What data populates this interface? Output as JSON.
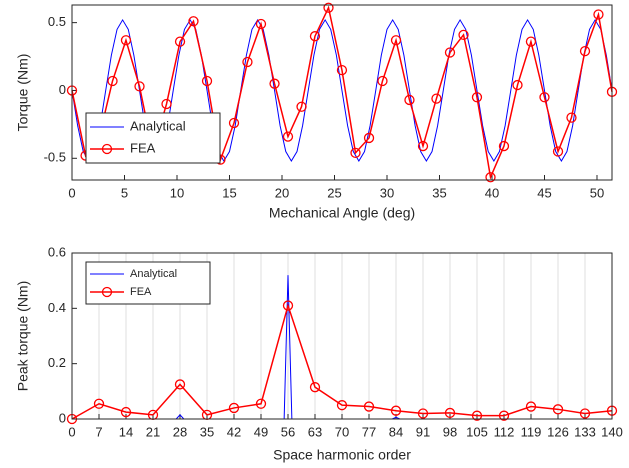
{
  "chart_data": [
    {
      "type": "line",
      "xlabel": "Mechanical Angle (deg)",
      "ylabel": "Torque (Nm)",
      "xlim": [
        0,
        51.43
      ],
      "ylim": [
        -0.66,
        0.63
      ],
      "xticks": [
        0,
        5,
        10,
        15,
        20,
        25,
        30,
        35,
        40,
        45,
        50
      ],
      "yticks": [
        -0.5,
        0,
        0.5
      ],
      "grid": false,
      "legend": "lower left",
      "series": [
        {
          "name": "Analytical",
          "color": "#0000ff",
          "marker": "none",
          "x": [
            0,
            0.54,
            1.07,
            1.61,
            2.14,
            2.68,
            3.21,
            3.75,
            4.29,
            4.82,
            5.36,
            5.89,
            6.43,
            6.96,
            7.5,
            8.04,
            8.57,
            9.11,
            9.64,
            10.18,
            10.71,
            11.25,
            11.79,
            12.32,
            12.86,
            13.39,
            13.93,
            14.46,
            15,
            15.54,
            16.07,
            16.61,
            17.14,
            17.68,
            18.21,
            18.75,
            19.29,
            19.82,
            20.36,
            20.89,
            21.43,
            21.96,
            22.5,
            23.04,
            23.57,
            24.11,
            24.64,
            25.18,
            25.71,
            26.25,
            26.79,
            27.32,
            27.86,
            28.39,
            28.93,
            29.46,
            30,
            30.54,
            31.07,
            31.61,
            32.14,
            32.68,
            33.21,
            33.75,
            34.29,
            34.82,
            35.36,
            35.89,
            36.43,
            36.96,
            37.5,
            38.04,
            38.57,
            39.11,
            39.64,
            40.18,
            40.71,
            41.25,
            41.79,
            42.32,
            42.86,
            43.39,
            43.93,
            44.46,
            45,
            45.54,
            46.07,
            46.61,
            47.14,
            47.68,
            48.21,
            48.75,
            49.29,
            49.82,
            50.36,
            50.89,
            51.43
          ],
          "values": [
            0,
            -0.26,
            -0.45,
            -0.52,
            -0.45,
            -0.26,
            0,
            0.26,
            0.45,
            0.52,
            0.45,
            0.26,
            0,
            -0.26,
            -0.45,
            -0.52,
            -0.45,
            -0.26,
            0,
            0.26,
            0.45,
            0.52,
            0.45,
            0.26,
            0,
            -0.26,
            -0.45,
            -0.52,
            -0.45,
            -0.26,
            0,
            0.26,
            0.45,
            0.52,
            0.45,
            0.26,
            0,
            -0.26,
            -0.45,
            -0.52,
            -0.45,
            -0.26,
            0,
            0.26,
            0.45,
            0.52,
            0.45,
            0.26,
            0,
            -0.26,
            -0.45,
            -0.52,
            -0.45,
            -0.26,
            0,
            0.26,
            0.45,
            0.52,
            0.45,
            0.26,
            0,
            -0.26,
            -0.45,
            -0.52,
            -0.45,
            -0.26,
            0,
            0.26,
            0.45,
            0.52,
            0.45,
            0.26,
            0,
            -0.26,
            -0.45,
            -0.52,
            -0.45,
            -0.26,
            0,
            0.26,
            0.45,
            0.52,
            0.45,
            0.26,
            0,
            -0.26,
            -0.45,
            -0.52,
            -0.45,
            -0.26,
            0,
            0.26,
            0.45,
            0.52,
            0.45,
            0.26,
            0
          ]
        },
        {
          "name": "FEA",
          "color": "#ff0000",
          "marker": "o",
          "x": [
            0,
            1.29,
            2.57,
            3.86,
            5.14,
            6.43,
            7.71,
            9,
            10.29,
            11.57,
            12.86,
            14.14,
            15.43,
            16.71,
            18,
            19.29,
            20.57,
            21.86,
            23.14,
            24.43,
            25.71,
            27,
            28.29,
            29.57,
            30.86,
            32.14,
            33.43,
            34.71,
            36,
            37.29,
            38.57,
            39.86,
            41.14,
            42.43,
            43.71,
            45,
            46.29,
            47.57,
            48.86,
            50.14,
            51.43
          ],
          "values": [
            0,
            -0.48,
            -0.35,
            0.07,
            0.37,
            0.03,
            -0.45,
            -0.1,
            0.36,
            0.51,
            0.07,
            -0.51,
            -0.24,
            0.21,
            0.49,
            0.05,
            -0.34,
            -0.12,
            0.4,
            0.61,
            0.15,
            -0.46,
            -0.35,
            0.07,
            0.37,
            -0.07,
            -0.41,
            -0.06,
            0.28,
            0.41,
            -0.05,
            -0.64,
            -0.41,
            0.04,
            0.36,
            -0.05,
            -0.45,
            -0.2,
            0.29,
            0.56,
            -0.01
          ]
        }
      ]
    },
    {
      "type": "line",
      "xlabel": "Space harmonic order",
      "ylabel": "Peak torque (Nm)",
      "xlim": [
        0,
        140
      ],
      "ylim": [
        0,
        0.6
      ],
      "xticks": [
        0,
        7,
        14,
        21,
        28,
        35,
        42,
        49,
        56,
        63,
        70,
        77,
        84,
        91,
        98,
        105,
        112,
        119,
        126,
        133,
        140
      ],
      "yticks": [
        0,
        0.2,
        0.4,
        0.6
      ],
      "grid": true,
      "legend": "upper left",
      "series": [
        {
          "name": "Analytical",
          "color": "#0000ff",
          "marker": "none",
          "x": [
            0,
            27,
            28,
            29,
            55,
            56,
            57,
            83,
            84,
            85,
            140
          ],
          "values": [
            0,
            0,
            0.015,
            0,
            0,
            0.52,
            0,
            0,
            0.006,
            0,
            0
          ]
        },
        {
          "name": "FEA",
          "color": "#ff0000",
          "marker": "o",
          "x": [
            0,
            7,
            14,
            21,
            28,
            35,
            42,
            49,
            56,
            63,
            70,
            77,
            84,
            91,
            98,
            105,
            112,
            119,
            126,
            133,
            140
          ],
          "values": [
            0,
            0.055,
            0.025,
            0.015,
            0.125,
            0.015,
            0.04,
            0.055,
            0.41,
            0.115,
            0.05,
            0.045,
            0.03,
            0.02,
            0.022,
            0.012,
            0.012,
            0.045,
            0.035,
            0.02,
            0.03
          ]
        }
      ]
    }
  ]
}
